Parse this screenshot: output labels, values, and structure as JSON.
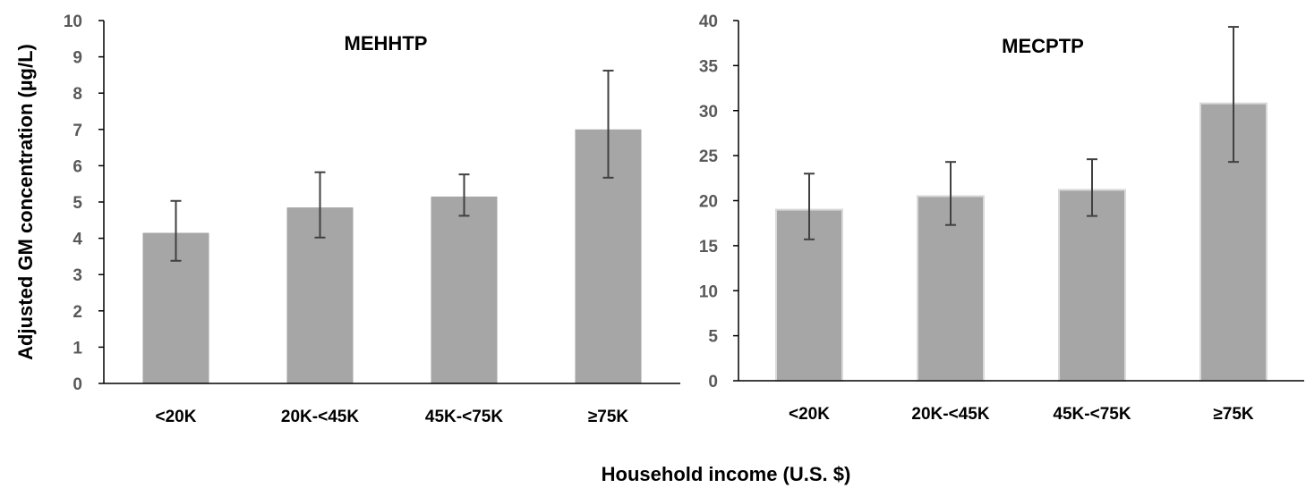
{
  "figure": {
    "ylabel": "Adjusted GM  concentration (µg/L)",
    "xlabel": "Household income (U.S. $)"
  },
  "chart_data": [
    {
      "type": "bar",
      "title": "MEHHTP",
      "categories": [
        "<20K",
        "20K-<45K",
        "45K-<75K",
        "≥75K"
      ],
      "values": [
        4.15,
        4.85,
        5.15,
        7.0
      ],
      "error_low": [
        3.38,
        4.02,
        4.62,
        5.67
      ],
      "error_high": [
        5.03,
        5.82,
        5.76,
        8.62
      ],
      "ylim": [
        0,
        10
      ],
      "yticks": [
        0,
        1,
        2,
        3,
        4,
        5,
        6,
        7,
        8,
        9,
        10
      ],
      "grid": false,
      "bar_color": "#a6a6a6",
      "error_color": "#404040"
    },
    {
      "type": "bar",
      "title": "MECPTP",
      "categories": [
        "<20K",
        "20K-<45K",
        "45K-<75K",
        "≥75K"
      ],
      "values": [
        19.0,
        20.5,
        21.2,
        30.8
      ],
      "error_low": [
        15.7,
        17.3,
        18.3,
        24.3
      ],
      "error_high": [
        23.0,
        24.3,
        24.6,
        39.3
      ],
      "ylim": [
        0,
        40
      ],
      "yticks": [
        0,
        5,
        10,
        15,
        20,
        25,
        30,
        35,
        40
      ],
      "grid": false,
      "bar_color": "#a6a6a6",
      "error_color": "#404040"
    }
  ]
}
